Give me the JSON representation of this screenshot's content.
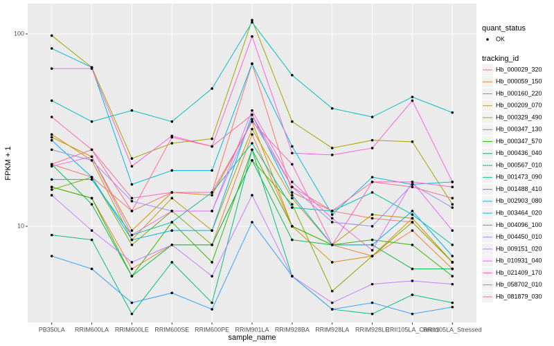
{
  "chart_data": {
    "type": "line",
    "x_label": "sample_name",
    "y_label": "FPKM + 1",
    "log_y": true,
    "grid": true,
    "ylim": [
      3.16,
      144
    ],
    "yticks": [
      10,
      100
    ],
    "legend_status_title": "quant_status",
    "legend_status_items": [
      "OK"
    ],
    "legend_title": "tracking_id",
    "categories": [
      "PB350LA",
      "RRIM600LA",
      "RRIM600LE",
      "RRIM600SE",
      "RRIM600PE",
      "RRIM901LA",
      "RRIM928BA",
      "RRIM928LA",
      "RRIM928LE",
      "RRII105LA_Control",
      "RRII105LA_Stressed"
    ],
    "series": [
      {
        "name": "Hb_000029_320",
        "color": "#F8766D",
        "values": [
          21,
          18,
          12,
          15,
          15,
          70,
          15,
          12,
          11,
          10.5,
          6.5
        ]
      },
      {
        "name": "Hb_000059_150",
        "color": "#EA8331",
        "values": [
          16,
          14,
          6,
          8,
          8,
          30,
          10,
          8,
          7,
          9.5,
          6
        ]
      },
      {
        "name": "Hb_000160_220",
        "color": "#D89000",
        "values": [
          29,
          23,
          9.5,
          15,
          14.5,
          35,
          10,
          6.5,
          7,
          11,
          6.5
        ]
      },
      {
        "name": "Hb_000209_070",
        "color": "#C09B00",
        "values": [
          30,
          22,
          8.5,
          14,
          9.5,
          32,
          14,
          8,
          11.5,
          11,
          6.5
        ]
      },
      {
        "name": "Hb_000329_490",
        "color": "#A3A500",
        "values": [
          98,
          67,
          22.5,
          27,
          28.5,
          118,
          35,
          25.5,
          28,
          27.5,
          13
        ]
      },
      {
        "name": "Hb_000347_130",
        "color": "#7CAE00",
        "values": [
          15.5,
          18,
          8,
          12,
          8,
          22,
          13,
          4.6,
          7,
          10.5,
          6.5
        ]
      },
      {
        "name": "Hb_000347_570",
        "color": "#39B600",
        "values": [
          16,
          14,
          5.5,
          10.5,
          6.5,
          25,
          10,
          8,
          8.5,
          8,
          5.5
        ]
      },
      {
        "name": "Hb_000436_040",
        "color": "#00BB4E",
        "values": [
          21,
          13,
          5.5,
          8,
          8,
          22,
          8.5,
          8,
          8,
          6,
          6
        ]
      },
      {
        "name": "Hb_000567_010",
        "color": "#00BF7D",
        "values": [
          9,
          8.5,
          3.5,
          6.5,
          4,
          25,
          5.5,
          3.7,
          3.5,
          4.4,
          4
        ]
      },
      {
        "name": "Hb_001473_090",
        "color": "#00C1A3",
        "values": [
          17.5,
          17.5,
          9,
          10.5,
          15,
          27,
          12.5,
          12,
          15,
          11.5,
          8
        ]
      },
      {
        "name": "Hb_001488_410",
        "color": "#00BFC4",
        "values": [
          45,
          35,
          40,
          35,
          52,
          115,
          61,
          41,
          37,
          47,
          39
        ]
      },
      {
        "name": "Hb_002903_080",
        "color": "#00BAE0",
        "values": [
          84,
          67,
          16.5,
          19.5,
          19.5,
          70,
          26,
          11.5,
          18,
          16.5,
          17
        ]
      },
      {
        "name": "Hb_003464_020",
        "color": "#00B0F6",
        "values": [
          28,
          18,
          8.5,
          9.5,
          9.5,
          38,
          14.5,
          8,
          8,
          12,
          7
        ]
      },
      {
        "name": "Hb_004096_100",
        "color": "#35A2FF",
        "values": [
          7,
          6,
          4,
          4.5,
          3.7,
          10.5,
          5.5,
          3.7,
          4,
          3.5,
          3.8
        ]
      },
      {
        "name": "Hb_004450_010",
        "color": "#9590FF",
        "values": [
          25,
          22,
          13.5,
          12,
          12,
          36,
          16,
          10.5,
          10,
          16.5,
          12.5
        ]
      },
      {
        "name": "Hb_009151_020",
        "color": "#C77CFF",
        "values": [
          14.5,
          9.5,
          6.5,
          8,
          5.5,
          14.5,
          5.5,
          4,
          5,
          5.2,
          5
        ]
      },
      {
        "name": "Hb_010931_040",
        "color": "#E76BF3",
        "values": [
          20.5,
          23,
          9,
          12,
          12,
          40,
          17,
          11,
          7.5,
          17,
          9.5
        ]
      },
      {
        "name": "Hb_021409_170",
        "color": "#FA62DB",
        "values": [
          66,
          66,
          20.5,
          29.5,
          26,
          97,
          24,
          23.5,
          25.5,
          45,
          17
        ]
      },
      {
        "name": "Hb_058702_010",
        "color": "#FF62BC",
        "values": [
          37,
          25,
          14,
          15,
          15,
          35,
          21,
          8,
          17,
          17,
          16
        ]
      },
      {
        "name": "Hb_081879_030",
        "color": "#FF6C91",
        "values": [
          21,
          25,
          12,
          29,
          26,
          38,
          16,
          12,
          17,
          16,
          14
        ]
      }
    ]
  }
}
